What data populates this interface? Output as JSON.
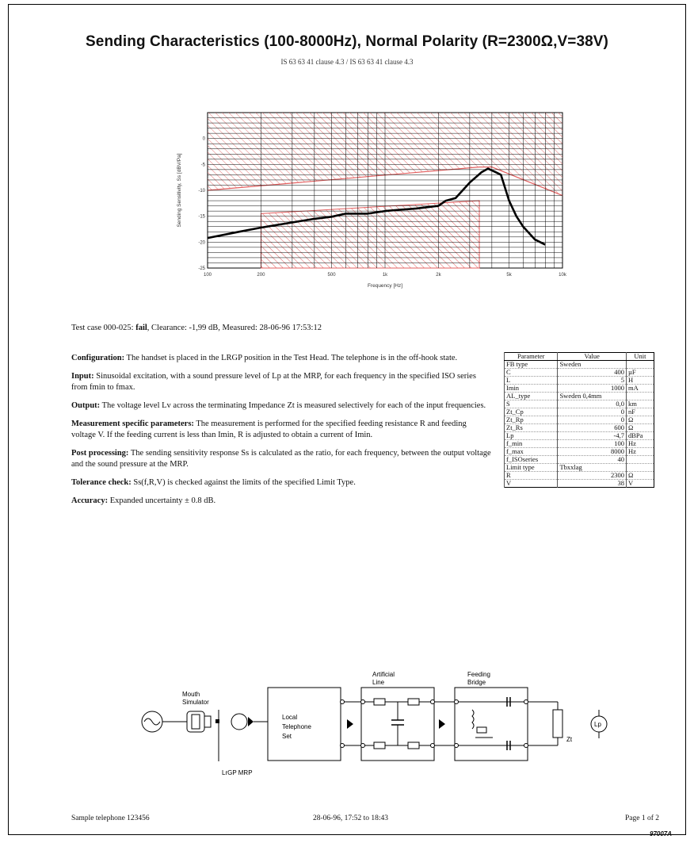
{
  "header": {
    "title": "Sending Characteristics (100-8000Hz), Normal Polarity (R=2300Ω,V=38V)",
    "subtitle": "IS 63 63 41 clause 4.3 / IS 63 63 41 clause 4.3"
  },
  "chart_data": {
    "type": "line",
    "xlabel": "Frequency [Hz]",
    "ylabel": "Sending Sensitivity, Ss [dBV/Pa]",
    "xscale": "log",
    "xlim": [
      100,
      10000
    ],
    "ylim": [
      -25,
      5
    ],
    "x_ticks": [
      "100",
      "200",
      "500",
      "1k",
      "2k",
      "5k",
      "10k"
    ],
    "y_ticks": [
      "0",
      "-5",
      "-10",
      "-15",
      "-20",
      "-25"
    ],
    "grid": true,
    "series": [
      {
        "values": [
          {
            "x": 100,
            "y": -19.2
          },
          {
            "x": 150,
            "y": -18.0
          },
          {
            "x": 200,
            "y": -17.2
          },
          {
            "x": 300,
            "y": -16.2
          },
          {
            "x": 400,
            "y": -15.5
          },
          {
            "x": 500,
            "y": -15.1
          },
          {
            "x": 600,
            "y": -14.5
          },
          {
            "x": 800,
            "y": -14.5
          },
          {
            "x": 1000,
            "y": -14.0
          },
          {
            "x": 1500,
            "y": -13.5
          },
          {
            "x": 2000,
            "y": -13.0
          },
          {
            "x": 2200,
            "y": -12.0
          },
          {
            "x": 2500,
            "y": -11.5
          },
          {
            "x": 3000,
            "y": -8.5
          },
          {
            "x": 3500,
            "y": -6.5
          },
          {
            "x": 3800,
            "y": -5.8
          },
          {
            "x": 4200,
            "y": -6.5
          },
          {
            "x": 4500,
            "y": -7.0
          },
          {
            "x": 5000,
            "y": -12.0
          },
          {
            "x": 5500,
            "y": -15.0
          },
          {
            "x": 6000,
            "y": -17.0
          },
          {
            "x": 7000,
            "y": -19.5
          },
          {
            "x": 8000,
            "y": -20.5
          }
        ]
      }
    ],
    "upper_limit": [
      {
        "x": 100,
        "y": -10.0
      },
      {
        "x": 3400,
        "y": -5.5
      },
      {
        "x": 4000,
        "y": -5.5
      },
      {
        "x": 10000,
        "y": -11.0
      }
    ],
    "lower_limit": [
      {
        "x": 200,
        "y": -14.5
      },
      {
        "x": 3400,
        "y": -12.0
      }
    ]
  },
  "result": {
    "prefix": "Test case 000-025:",
    "status": "fail",
    "rest": ", Clearance: -1,99 dB, Measured: 28-06-96 17:53:12"
  },
  "description": [
    {
      "label": "Configuration:",
      "text": " The handset is placed in the LRGP position in the Test Head. The telephone is in the off-hook state."
    },
    {
      "label": "Input:",
      "text": " Sinusoidal excitation, with a sound pressure level of Lp at the MRP, for each frequency in the specified ISO series from fmin to fmax."
    },
    {
      "label": "Output:",
      "text": " The voltage level Lv across the terminating Impedance Zt is measured selectively for each of the input frequencies."
    },
    {
      "label": "Measurement specific parameters:",
      "text": " The measurement is performed for the specified feeding resistance R and feeding voltage V. If the feeding current is less than Imin, R is adjusted to obtain a current of Imin."
    },
    {
      "label": "Post processing:",
      "text": " The sending sensitivity response Ss is calculated as the ratio, for each frequency, between the output voltage and the sound pressure at the MRP."
    },
    {
      "label": "Tolerance check:",
      "text": " Ss(f,R,V) is checked against the limits of the specified Limit Type."
    },
    {
      "label": "Accuracy:",
      "text": " Expanded uncertainty ± 0.8 dB."
    }
  ],
  "params": {
    "headers": [
      "Parameter",
      "Value",
      "Unit"
    ],
    "rows": [
      [
        "FB type",
        "Sweden",
        ""
      ],
      [
        "C",
        "400",
        "µF"
      ],
      [
        "L",
        "5",
        "H"
      ],
      [
        "Imin",
        "1000",
        "mA"
      ],
      [
        "AL_type",
        "Sweden 0,4mm",
        ""
      ],
      [
        "S",
        "0,0",
        "km"
      ],
      [
        "Zt_Cp",
        "0",
        "nF"
      ],
      [
        "Zt_Rp",
        "0",
        "Ω"
      ],
      [
        "Zt_Rs",
        "600",
        "Ω"
      ],
      [
        "Lp",
        "-4,7",
        "dBPa"
      ],
      [
        "f_min",
        "100",
        "Hz"
      ],
      [
        "f_max",
        "8000",
        "Hz"
      ],
      [
        "f_ISOseries",
        "40",
        ""
      ],
      [
        "Limit type",
        "Tbxxlag",
        ""
      ],
      [
        "R",
        "2300",
        "Ω"
      ],
      [
        "V",
        "38",
        "V"
      ]
    ]
  },
  "diagram": {
    "mouth_label_1": "Mouth",
    "mouth_label_2": "Simulator",
    "lrgp_label": "LrGP MRP",
    "local_1": "Local",
    "local_2": "Telephone",
    "local_3": "Set",
    "al_1": "Artificial",
    "al_2": "Line",
    "fb_1": "Feeding",
    "fb_2": "Bridge",
    "zt": "Zt",
    "lp": "Lp"
  },
  "footer": {
    "left": "Sample telephone 123456",
    "center": "28-06-96, 17:52 to 18:43",
    "right": "Page 1 of 2",
    "code": "97007A"
  }
}
